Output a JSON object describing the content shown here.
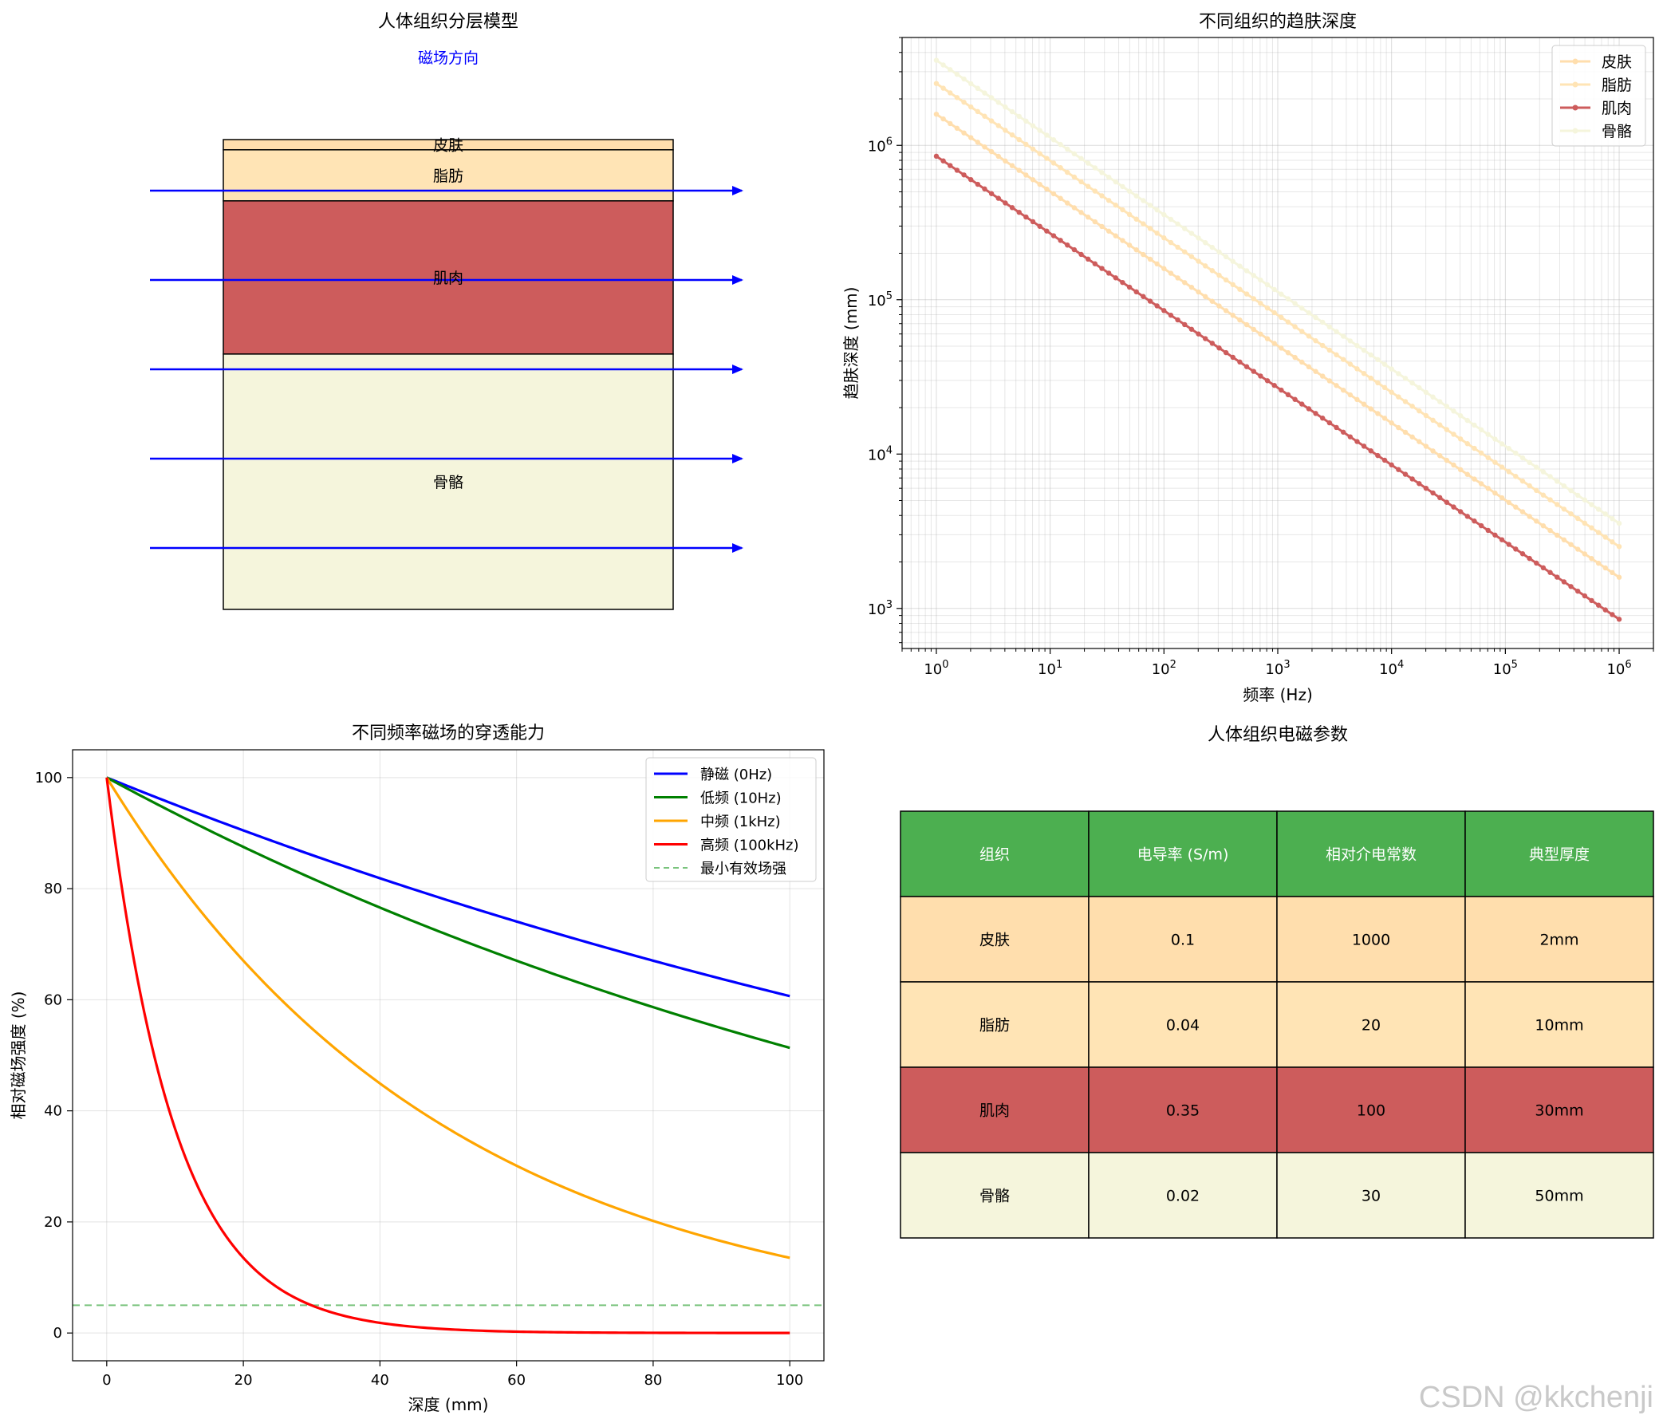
{
  "watermark": "CSDN @kkchenji",
  "chart_data": [
    {
      "type": "diagram",
      "title": "人体组织分层模型",
      "field_label": "磁场方向",
      "layers": [
        {
          "name": "皮肤",
          "thickness_mm": 2,
          "color": "#FFDEAD"
        },
        {
          "name": "脂肪",
          "thickness_mm": 10,
          "color": "#FFE4B5"
        },
        {
          "name": "肌肉",
          "thickness_mm": 30,
          "color": "#CD5C5C"
        },
        {
          "name": "骨骼",
          "thickness_mm": 50,
          "color": "#F5F5DC"
        }
      ],
      "arrow_count": 5,
      "arrow_color": "#0000FF"
    },
    {
      "type": "line",
      "title": "不同组织的趋肤深度",
      "xlabel": "频率 (Hz)",
      "ylabel": "趋肤深度 (mm)",
      "xscale": "log",
      "yscale": "log",
      "xlim": [
        1,
        1000000
      ],
      "ylim": [
        550,
        5000000
      ],
      "x_ticks": [
        1,
        10,
        100,
        1000,
        10000,
        100000,
        1000000
      ],
      "x_tick_labels": [
        [
          "10",
          "0"
        ],
        [
          "10",
          "1"
        ],
        [
          "10",
          "2"
        ],
        [
          "10",
          "3"
        ],
        [
          "10",
          "4"
        ],
        [
          "10",
          "5"
        ],
        [
          "10",
          "6"
        ]
      ],
      "y_ticks": [
        1000,
        10000,
        100000,
        1000000
      ],
      "y_tick_labels": [
        [
          "10",
          "3"
        ],
        [
          "10",
          "4"
        ],
        [
          "10",
          "5"
        ],
        [
          "10",
          "6"
        ]
      ],
      "points_per_series": 100,
      "legend": "upper right",
      "series": [
        {
          "name": "皮肤",
          "color": "#FFDEAD",
          "sigma": 0.1,
          "y_at_1Hz": 1591549,
          "y_at_1MHz": 1592,
          "alpha": 1.0,
          "marker": true
        },
        {
          "name": "脂肪",
          "color": "#FFE4B5",
          "sigma": 0.04,
          "y_at_1Hz": 2516461,
          "y_at_1MHz": 2516,
          "alpha": 1.0,
          "marker": true
        },
        {
          "name": "肌肉",
          "color": "#CD5C5C",
          "sigma": 0.35,
          "y_at_1Hz": 850755,
          "y_at_1MHz": 851,
          "alpha": 1.0,
          "marker": true
        },
        {
          "name": "骨骼",
          "color": "#F5F5DC",
          "sigma": 0.02,
          "y_at_1Hz": 3558813,
          "y_at_1MHz": 3559,
          "alpha": 1.0,
          "marker": true
        }
      ]
    },
    {
      "type": "line",
      "title": "不同频率磁场的穿透能力",
      "xlabel": "深度 (mm)",
      "ylabel": "相对磁场强度 (%)",
      "xlim": [
        -5,
        105
      ],
      "ylim": [
        -5,
        105
      ],
      "x_ticks": [
        0,
        20,
        40,
        60,
        80,
        100
      ],
      "y_ticks": [
        0,
        20,
        40,
        60,
        80,
        100
      ],
      "legend": "upper right",
      "series": [
        {
          "name": "静磁 (0Hz)",
          "color": "#0000FF",
          "decay_length_mm": 200,
          "y_at_0": 100,
          "y_at_100": 60.7
        },
        {
          "name": "低频 (10Hz)",
          "color": "#008000",
          "decay_length_mm": 150,
          "y_at_0": 100,
          "y_at_100": 51.3
        },
        {
          "name": "中频 (1kHz)",
          "color": "#FFA500",
          "decay_length_mm": 50,
          "y_at_0": 100,
          "y_at_100": 13.5
        },
        {
          "name": "高频 (100kHz)",
          "color": "#FF0000",
          "decay_length_mm": 10,
          "y_at_0": 100,
          "y_at_100": 0.0
        }
      ],
      "reference_line": {
        "name": "最小有效场强",
        "y": 5,
        "color": "#4CAF50",
        "style": "dashed"
      }
    },
    {
      "type": "table",
      "title": "人体组织电磁参数",
      "header_color": "#4CAF50",
      "columns": [
        "组织",
        "电导率 (S/m)",
        "相对介电常数",
        "典型厚度"
      ],
      "rows": [
        {
          "color": "#FFDEAD",
          "cells": [
            "皮肤",
            "0.1",
            "1000",
            "2mm"
          ]
        },
        {
          "color": "#FFE4B5",
          "cells": [
            "脂肪",
            "0.04",
            "20",
            "10mm"
          ]
        },
        {
          "color": "#CD5C5C",
          "cells": [
            "肌肉",
            "0.35",
            "100",
            "30mm"
          ]
        },
        {
          "color": "#F5F5DC",
          "cells": [
            "骨骼",
            "0.02",
            "30",
            "50mm"
          ]
        }
      ]
    }
  ]
}
